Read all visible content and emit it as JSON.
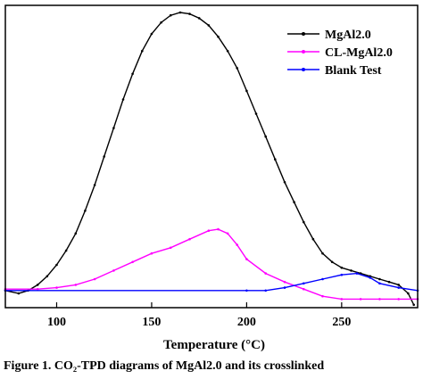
{
  "chart_data": {
    "type": "line",
    "xlabel": "Temperature (°C)",
    "ylabel": "",
    "xlim": [
      73,
      290
    ],
    "ylim": [
      -0.06,
      1.0
    ],
    "x_ticks": [
      100,
      150,
      200,
      250
    ],
    "x_tick_labels": [
      "100",
      "150",
      "200",
      "250"
    ],
    "y_ticks_shown": false,
    "grid": false,
    "legend_position": "top-right",
    "series": [
      {
        "name": "MgAl2.0",
        "color": "#000000",
        "points": [
          [
            73,
            0.0
          ],
          [
            80,
            -0.01
          ],
          [
            85,
            0.0
          ],
          [
            90,
            0.02
          ],
          [
            95,
            0.05
          ],
          [
            100,
            0.09
          ],
          [
            105,
            0.14
          ],
          [
            110,
            0.2
          ],
          [
            115,
            0.28
          ],
          [
            120,
            0.37
          ],
          [
            125,
            0.47
          ],
          [
            130,
            0.57
          ],
          [
            135,
            0.67
          ],
          [
            140,
            0.76
          ],
          [
            145,
            0.84
          ],
          [
            150,
            0.9
          ],
          [
            155,
            0.94
          ],
          [
            160,
            0.965
          ],
          [
            165,
            0.975
          ],
          [
            170,
            0.97
          ],
          [
            175,
            0.955
          ],
          [
            180,
            0.93
          ],
          [
            185,
            0.89
          ],
          [
            190,
            0.84
          ],
          [
            195,
            0.78
          ],
          [
            200,
            0.7
          ],
          [
            205,
            0.62
          ],
          [
            210,
            0.54
          ],
          [
            215,
            0.46
          ],
          [
            220,
            0.38
          ],
          [
            225,
            0.31
          ],
          [
            230,
            0.24
          ],
          [
            235,
            0.18
          ],
          [
            240,
            0.13
          ],
          [
            245,
            0.1
          ],
          [
            250,
            0.08
          ],
          [
            255,
            0.07
          ],
          [
            260,
            0.06
          ],
          [
            265,
            0.05
          ],
          [
            270,
            0.04
          ],
          [
            275,
            0.03
          ],
          [
            280,
            0.02
          ],
          [
            285,
            -0.01
          ],
          [
            288,
            -0.05
          ]
        ]
      },
      {
        "name": "CL-MgAl2.0",
        "color": "#ff00ff",
        "points": [
          [
            73,
            0.005
          ],
          [
            90,
            0.005
          ],
          [
            100,
            0.01
          ],
          [
            110,
            0.02
          ],
          [
            120,
            0.04
          ],
          [
            130,
            0.07
          ],
          [
            140,
            0.1
          ],
          [
            150,
            0.13
          ],
          [
            160,
            0.15
          ],
          [
            170,
            0.18
          ],
          [
            180,
            0.21
          ],
          [
            185,
            0.215
          ],
          [
            190,
            0.2
          ],
          [
            195,
            0.16
          ],
          [
            200,
            0.11
          ],
          [
            210,
            0.06
          ],
          [
            220,
            0.03
          ],
          [
            230,
            0.005
          ],
          [
            240,
            -0.02
          ],
          [
            250,
            -0.03
          ],
          [
            260,
            -0.03
          ],
          [
            270,
            -0.03
          ],
          [
            280,
            -0.03
          ],
          [
            290,
            -0.03
          ]
        ]
      },
      {
        "name": "Blank Test",
        "color": "#0000ff",
        "points": [
          [
            73,
            0.0
          ],
          [
            200,
            0.0
          ],
          [
            210,
            0.0
          ],
          [
            220,
            0.01
          ],
          [
            230,
            0.025
          ],
          [
            240,
            0.04
          ],
          [
            250,
            0.055
          ],
          [
            258,
            0.06
          ],
          [
            265,
            0.045
          ],
          [
            270,
            0.025
          ],
          [
            280,
            0.01
          ],
          [
            290,
            0.0
          ]
        ]
      }
    ]
  },
  "caption": "Figure 1. CO₂-TPD diagrams of MgAl2.0 and its crosslinked"
}
